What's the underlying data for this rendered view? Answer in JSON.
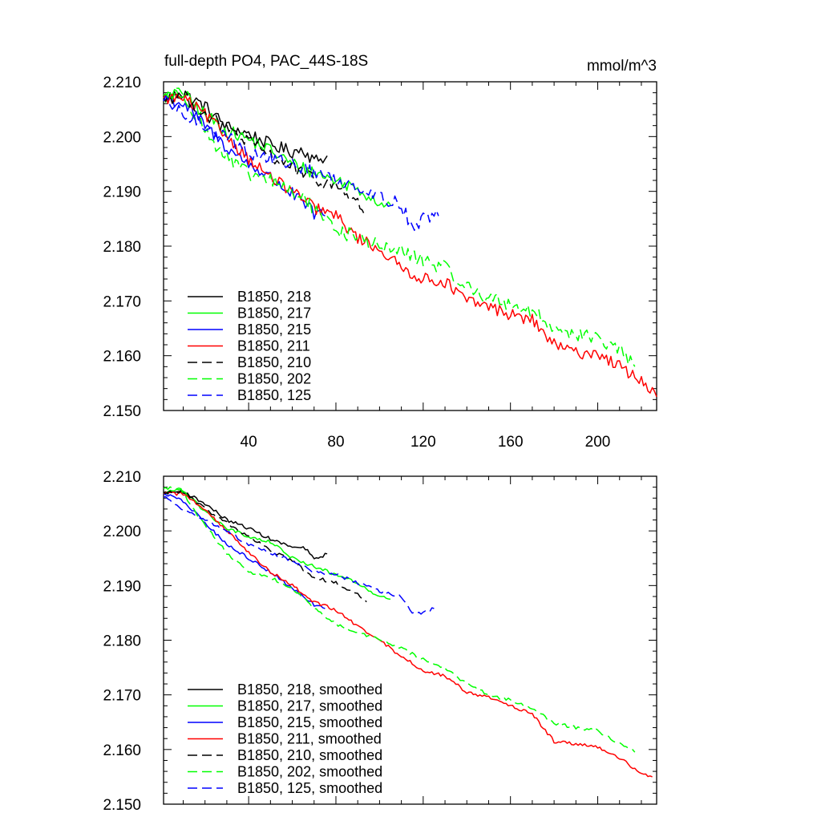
{
  "figure": {
    "title_left": "full-depth PO4, PAC_44S-18S",
    "title_right": "mmol/m^3"
  },
  "chart_data": [
    {
      "type": "line",
      "panel": "top",
      "xlim": [
        1,
        227
      ],
      "ylim": [
        2.15,
        2.21
      ],
      "x_ticks": [
        40,
        80,
        120,
        160,
        200
      ],
      "y_ticks": [
        2.15,
        2.16,
        2.17,
        2.18,
        2.19,
        2.2,
        2.21
      ],
      "y_tick_labels": [
        "2.150",
        "2.160",
        "2.170",
        "2.180",
        "2.190",
        "2.200",
        "2.210"
      ],
      "x_tick_labels": [
        "40",
        "80",
        "120",
        "160",
        "200"
      ],
      "legend_position": "bottom-left",
      "series": [
        {
          "name": "B1850, 218",
          "color": "#000000",
          "dash": "solid",
          "noise": 0.0012,
          "points": [
            [
              1,
              2.2072
            ],
            [
              10,
              2.2078
            ],
            [
              20,
              2.2055
            ],
            [
              30,
              2.2018
            ],
            [
              40,
              2.2005
            ],
            [
              50,
              2.1985
            ],
            [
              60,
              2.1972
            ],
            [
              65,
              2.1978
            ],
            [
              70,
              2.1955
            ],
            [
              76,
              2.1965
            ]
          ]
        },
        {
          "name": "B1850, 217",
          "color": "#00ff00",
          "dash": "solid",
          "noise": 0.0012,
          "points": [
            [
              1,
              2.2072
            ],
            [
              10,
              2.2078
            ],
            [
              20,
              2.204
            ],
            [
              30,
              2.201
            ],
            [
              40,
              2.1995
            ],
            [
              50,
              2.1975
            ],
            [
              60,
              2.195
            ],
            [
              70,
              2.1935
            ],
            [
              80,
              2.192
            ],
            [
              90,
              2.1905
            ],
            [
              100,
              2.188
            ],
            [
              105,
              2.1875
            ]
          ]
        },
        {
          "name": "B1850, 215",
          "color": "#0000ff",
          "dash": "solid",
          "noise": 0.0012,
          "points": [
            [
              1,
              2.207
            ],
            [
              10,
              2.206
            ],
            [
              20,
              2.202
            ],
            [
              30,
              2.198
            ],
            [
              40,
              2.195
            ],
            [
              50,
              2.1925
            ],
            [
              60,
              2.1895
            ],
            [
              70,
              2.186
            ],
            [
              75,
              2.1855
            ]
          ]
        },
        {
          "name": "B1850, 211",
          "color": "#ff0000",
          "dash": "solid",
          "noise": 0.0011,
          "points": [
            [
              1,
              2.207
            ],
            [
              10,
              2.207
            ],
            [
              20,
              2.204
            ],
            [
              30,
              2.2
            ],
            [
              40,
              2.196
            ],
            [
              50,
              2.1925
            ],
            [
              60,
              2.19
            ],
            [
              70,
              2.187
            ],
            [
              80,
              2.1855
            ],
            [
              90,
              2.1815
            ],
            [
              100,
              2.1795
            ],
            [
              110,
              2.176
            ],
            [
              120,
              2.174
            ],
            [
              130,
              2.1735
            ],
            [
              140,
              2.17
            ],
            [
              150,
              2.169
            ],
            [
              160,
              2.1675
            ],
            [
              170,
              2.1665
            ],
            [
              180,
              2.162
            ],
            [
              190,
              2.1605
            ],
            [
              200,
              2.1605
            ],
            [
              210,
              2.158
            ],
            [
              220,
              2.1555
            ],
            [
              227,
              2.1525
            ]
          ]
        },
        {
          "name": "B1850, 210",
          "color": "#000000",
          "dash": "dashed",
          "noise": 0.0012,
          "points": [
            [
              1,
              2.207
            ],
            [
              10,
              2.2075
            ],
            [
              20,
              2.204
            ],
            [
              30,
              2.2015
            ],
            [
              40,
              2.199
            ],
            [
              50,
              2.1965
            ],
            [
              60,
              2.1945
            ],
            [
              70,
              2.192
            ],
            [
              80,
              2.191
            ],
            [
              90,
              2.188
            ],
            [
              94,
              2.1855
            ]
          ]
        },
        {
          "name": "B1850, 202",
          "color": "#00ff00",
          "dash": "dashed",
          "noise": 0.0013,
          "points": [
            [
              1,
              2.2075
            ],
            [
              10,
              2.208
            ],
            [
              20,
              2.201
            ],
            [
              30,
              2.196
            ],
            [
              40,
              2.193
            ],
            [
              50,
              2.192
            ],
            [
              60,
              2.19
            ],
            [
              70,
              2.187
            ],
            [
              80,
              2.183
            ],
            [
              90,
              2.1815
            ],
            [
              100,
              2.18
            ],
            [
              110,
              2.179
            ],
            [
              120,
              2.1775
            ],
            [
              130,
              2.176
            ],
            [
              140,
              2.1725
            ],
            [
              150,
              2.1705
            ],
            [
              160,
              2.1695
            ],
            [
              170,
              2.168
            ],
            [
              180,
              2.165
            ],
            [
              190,
              2.164
            ],
            [
              200,
              2.163
            ],
            [
              210,
              2.161
            ],
            [
              217,
              2.158
            ]
          ]
        },
        {
          "name": "B1850, 125",
          "color": "#0000ff",
          "dash": "dashed",
          "noise": 0.0012,
          "points": [
            [
              1,
              2.2065
            ],
            [
              10,
              2.204
            ],
            [
              20,
              2.202
            ],
            [
              30,
              2.2
            ],
            [
              40,
              2.197
            ],
            [
              50,
              2.196
            ],
            [
              60,
              2.195
            ],
            [
              70,
              2.1935
            ],
            [
              80,
              2.192
            ],
            [
              90,
              2.191
            ],
            [
              100,
              2.189
            ],
            [
              110,
              2.1875
            ],
            [
              115,
              2.1835
            ],
            [
              120,
              2.185
            ],
            [
              127,
              2.1855
            ]
          ]
        }
      ]
    },
    {
      "type": "line",
      "panel": "bottom",
      "xlim": [
        1,
        227
      ],
      "ylim": [
        2.15,
        2.21
      ],
      "x_ticks": [
        40,
        80,
        120,
        160,
        200
      ],
      "y_ticks": [
        2.15,
        2.16,
        2.17,
        2.18,
        2.19,
        2.2,
        2.21
      ],
      "y_tick_labels": [
        "2.150",
        "2.160",
        "2.170",
        "2.180",
        "2.190",
        "2.200",
        "2.210"
      ],
      "legend_position": "bottom-left",
      "series": [
        {
          "name": "B1850, 218, smoothed",
          "color": "#000000",
          "dash": "solid",
          "noise": 0.0003,
          "points": [
            [
              1,
              2.207
            ],
            [
              10,
              2.2072
            ],
            [
              20,
              2.205
            ],
            [
              30,
              2.202
            ],
            [
              40,
              2.2005
            ],
            [
              50,
              2.1985
            ],
            [
              60,
              2.197
            ],
            [
              66,
              2.1968
            ],
            [
              70,
              2.1948
            ],
            [
              76,
              2.1958
            ]
          ]
        },
        {
          "name": "B1850, 217, smoothed",
          "color": "#00ff00",
          "dash": "solid",
          "noise": 0.0003,
          "points": [
            [
              1,
              2.207
            ],
            [
              10,
              2.2075
            ],
            [
              20,
              2.2035
            ],
            [
              30,
              2.2005
            ],
            [
              40,
              2.199
            ],
            [
              50,
              2.198
            ],
            [
              60,
              2.195
            ],
            [
              70,
              2.1935
            ],
            [
              80,
              2.192
            ],
            [
              90,
              2.1905
            ],
            [
              100,
              2.188
            ],
            [
              105,
              2.1875
            ]
          ]
        },
        {
          "name": "B1850, 215, smoothed",
          "color": "#0000ff",
          "dash": "solid",
          "noise": 0.0003,
          "points": [
            [
              1,
              2.2068
            ],
            [
              10,
              2.2055
            ],
            [
              20,
              2.2015
            ],
            [
              30,
              2.1975
            ],
            [
              40,
              2.195
            ],
            [
              50,
              2.1925
            ],
            [
              60,
              2.1895
            ],
            [
              70,
              2.1865
            ],
            [
              75,
              2.1858
            ]
          ]
        },
        {
          "name": "B1850, 211, smoothed",
          "color": "#ff0000",
          "dash": "solid",
          "noise": 0.0003,
          "points": [
            [
              1,
              2.2068
            ],
            [
              10,
              2.2068
            ],
            [
              20,
              2.204
            ],
            [
              30,
              2.2
            ],
            [
              40,
              2.196
            ],
            [
              50,
              2.1925
            ],
            [
              60,
              2.19
            ],
            [
              70,
              2.187
            ],
            [
              80,
              2.1855
            ],
            [
              90,
              2.1825
            ],
            [
              100,
              2.18
            ],
            [
              110,
              2.177
            ],
            [
              120,
              2.1745
            ],
            [
              130,
              2.1735
            ],
            [
              140,
              2.1705
            ],
            [
              150,
              2.1695
            ],
            [
              160,
              2.168
            ],
            [
              170,
              2.1665
            ],
            [
              180,
              2.1615
            ],
            [
              190,
              2.161
            ],
            [
              200,
              2.1605
            ],
            [
              210,
              2.1585
            ],
            [
              220,
              2.1555
            ],
            [
              225,
              2.155
            ]
          ]
        },
        {
          "name": "B1850, 210, smoothed",
          "color": "#000000",
          "dash": "dashed",
          "noise": 0.0003,
          "points": [
            [
              1,
              2.207
            ],
            [
              10,
              2.2072
            ],
            [
              20,
              2.204
            ],
            [
              30,
              2.2015
            ],
            [
              40,
              2.199
            ],
            [
              50,
              2.1965
            ],
            [
              60,
              2.1945
            ],
            [
              70,
              2.1915
            ],
            [
              80,
              2.1905
            ],
            [
              90,
              2.1885
            ],
            [
              94,
              2.187
            ]
          ]
        },
        {
          "name": "B1850, 202, smoothed",
          "color": "#00ff00",
          "dash": "dashed",
          "noise": 0.0003,
          "points": [
            [
              1,
              2.2078
            ],
            [
              8,
              2.208
            ],
            [
              20,
              2.201
            ],
            [
              30,
              2.196
            ],
            [
              40,
              2.1925
            ],
            [
              50,
              2.1915
            ],
            [
              60,
              2.1895
            ],
            [
              70,
              2.186
            ],
            [
              80,
              2.183
            ],
            [
              90,
              2.1815
            ],
            [
              100,
              2.18
            ],
            [
              110,
              2.1785
            ],
            [
              120,
              2.1765
            ],
            [
              130,
              2.175
            ],
            [
              140,
              2.172
            ],
            [
              150,
              2.17
            ],
            [
              160,
              2.169
            ],
            [
              170,
              2.1675
            ],
            [
              180,
              2.1648
            ],
            [
              190,
              2.164
            ],
            [
              200,
              2.1635
            ],
            [
              210,
              2.161
            ],
            [
              217,
              2.1595
            ]
          ]
        },
        {
          "name": "B1850, 125, smoothed",
          "color": "#0000ff",
          "dash": "dashed",
          "noise": 0.0003,
          "points": [
            [
              1,
              2.2062
            ],
            [
              10,
              2.204
            ],
            [
              20,
              2.202
            ],
            [
              30,
              2.2
            ],
            [
              40,
              2.1975
            ],
            [
              50,
              2.196
            ],
            [
              60,
              2.1945
            ],
            [
              70,
              2.1925
            ],
            [
              80,
              2.192
            ],
            [
              90,
              2.1905
            ],
            [
              100,
              2.189
            ],
            [
              110,
              2.188
            ],
            [
              115,
              2.1848
            ],
            [
              120,
              2.185
            ],
            [
              125,
              2.1858
            ]
          ]
        }
      ]
    }
  ]
}
